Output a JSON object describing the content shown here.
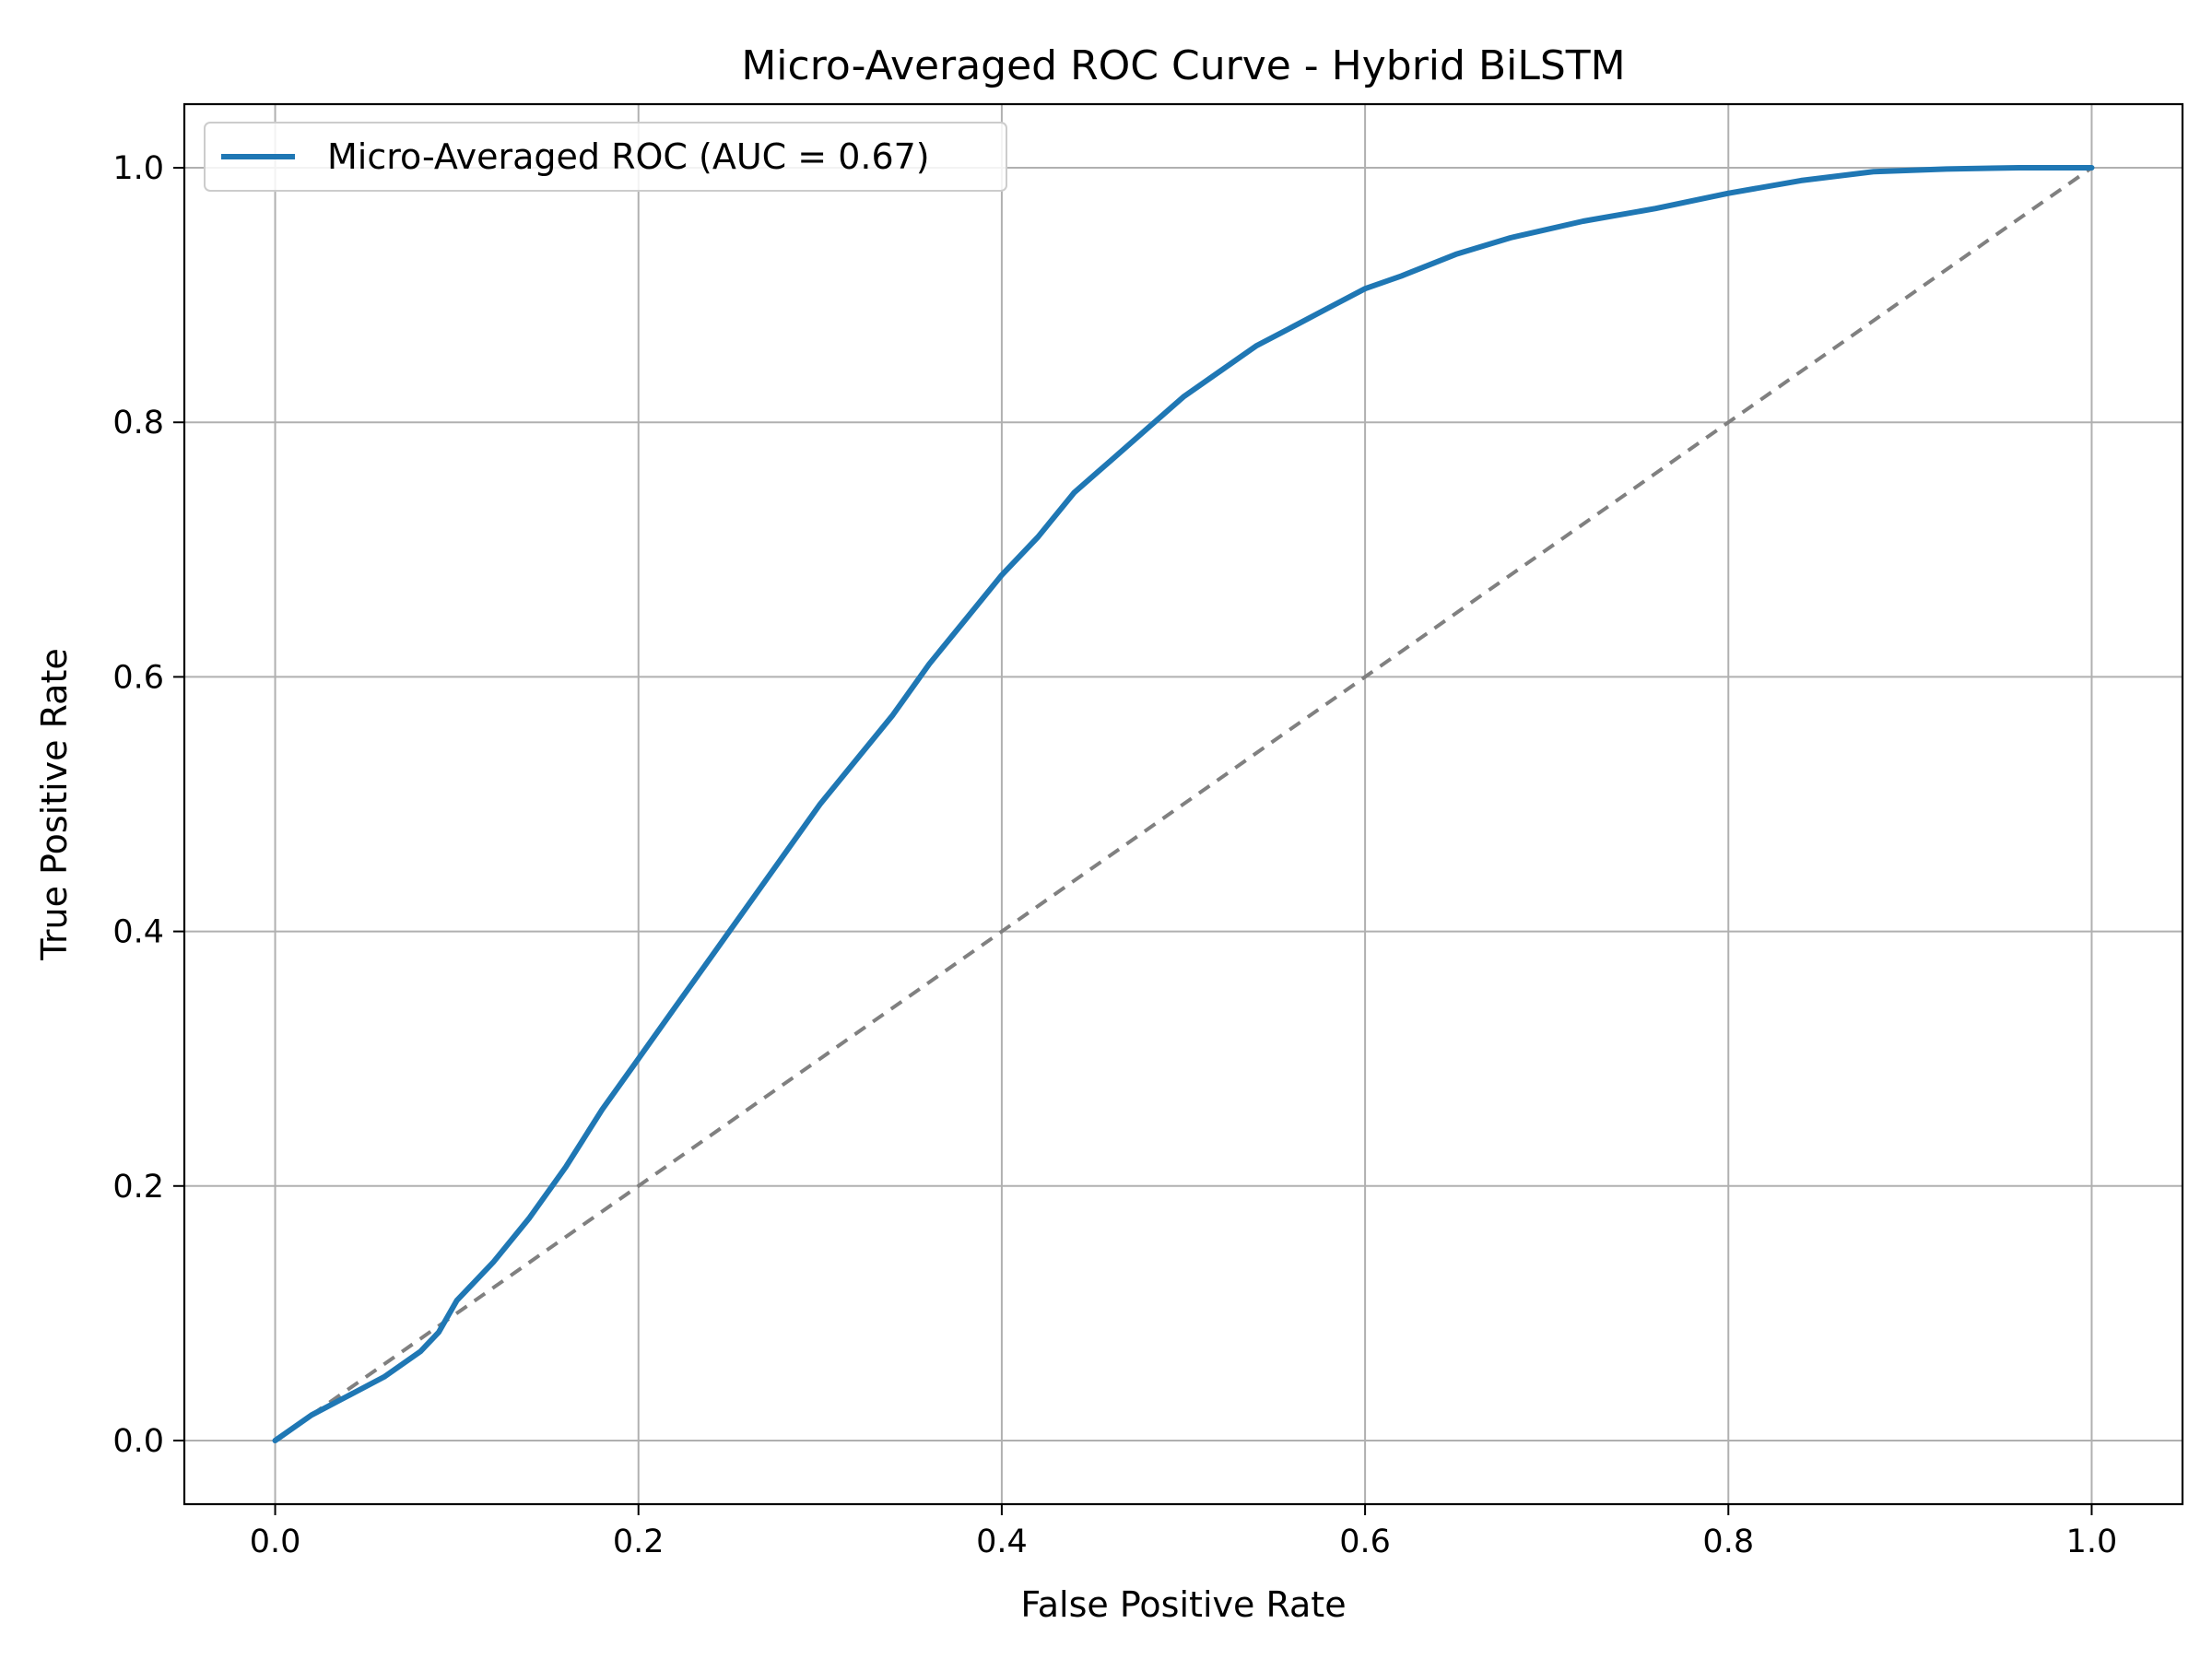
{
  "chart_data": {
    "type": "line",
    "title": "Micro-Averaged ROC Curve - Hybrid BiLSTM",
    "xlabel": "False Positive Rate",
    "ylabel": "True Positive Rate",
    "xlim": [
      -0.05,
      1.05
    ],
    "ylim": [
      -0.05,
      1.05
    ],
    "xticks": [
      "0.0",
      "0.2",
      "0.4",
      "0.6",
      "0.8",
      "1.0"
    ],
    "yticks": [
      "0.0",
      "0.2",
      "0.4",
      "0.6",
      "0.8",
      "1.0"
    ],
    "grid": true,
    "legend_position": "upper-left",
    "series": [
      {
        "name": "Micro-Averaged ROC (AUC = 0.67)",
        "color": "#1f77b4",
        "style": "solid",
        "x": [
          0.0,
          0.02,
          0.04,
          0.06,
          0.08,
          0.09,
          0.1,
          0.12,
          0.14,
          0.16,
          0.18,
          0.2,
          0.22,
          0.24,
          0.26,
          0.28,
          0.3,
          0.32,
          0.34,
          0.36,
          0.38,
          0.4,
          0.42,
          0.44,
          0.46,
          0.48,
          0.5,
          0.52,
          0.54,
          0.56,
          0.58,
          0.6,
          0.62,
          0.65,
          0.68,
          0.72,
          0.76,
          0.8,
          0.84,
          0.88,
          0.92,
          0.96,
          1.0
        ],
        "y": [
          0.0,
          0.02,
          0.035,
          0.05,
          0.07,
          0.085,
          0.11,
          0.14,
          0.175,
          0.215,
          0.26,
          0.3,
          0.34,
          0.38,
          0.42,
          0.46,
          0.5,
          0.535,
          0.57,
          0.61,
          0.645,
          0.68,
          0.71,
          0.745,
          0.77,
          0.795,
          0.82,
          0.84,
          0.86,
          0.875,
          0.89,
          0.905,
          0.915,
          0.932,
          0.945,
          0.958,
          0.968,
          0.98,
          0.99,
          0.997,
          0.999,
          1.0,
          1.0
        ]
      },
      {
        "name": "",
        "color": "#808080",
        "style": "dashed",
        "x": [
          0.0,
          1.0
        ],
        "y": [
          0.0,
          1.0
        ]
      }
    ]
  }
}
